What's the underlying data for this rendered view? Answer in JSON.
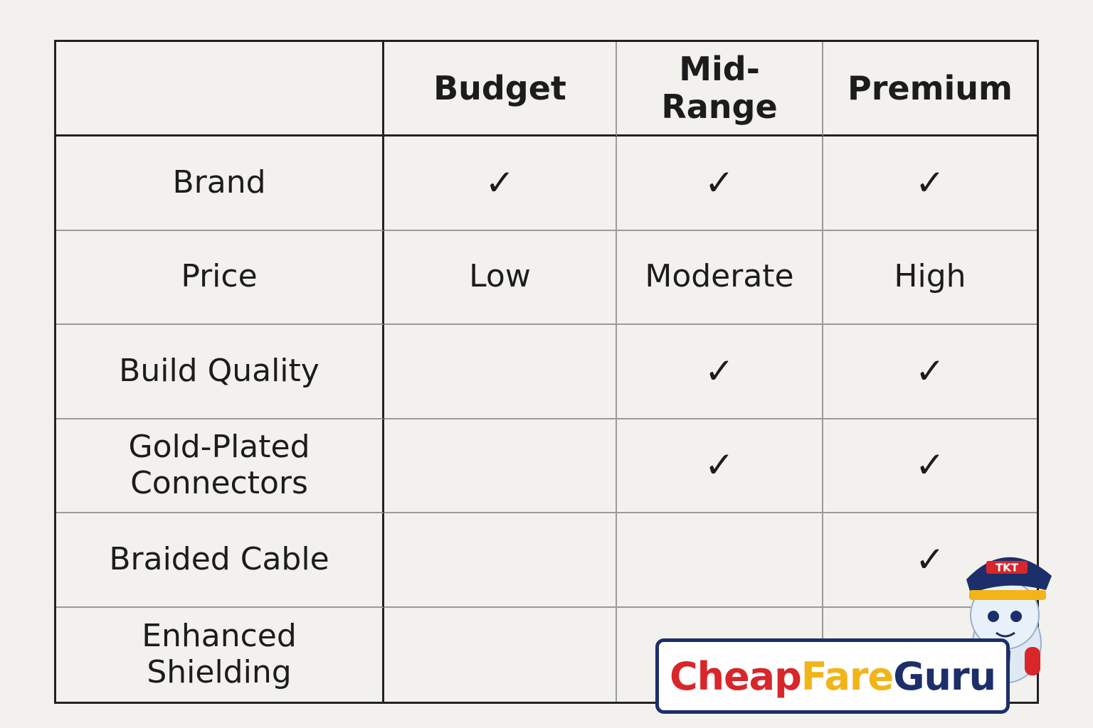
{
  "table": {
    "columns": [
      "Budget",
      "Mid-Range",
      "Premium"
    ],
    "rows": [
      [
        "Brand",
        "✓",
        "✓",
        "✓"
      ],
      [
        "Price",
        "Low",
        "Moderate",
        "High"
      ],
      [
        "Build Quality",
        null,
        "✓",
        "✓"
      ],
      [
        "Gold-Plated Connectors",
        null,
        "✓",
        "✓"
      ],
      [
        "Braided Cable",
        null,
        null,
        "✓"
      ],
      [
        "Enhanced Shielding",
        null,
        null,
        null
      ]
    ]
  },
  "watermark": {
    "parts": [
      "Cheap",
      "Fare",
      "Guru"
    ],
    "badge": "TKT"
  }
}
